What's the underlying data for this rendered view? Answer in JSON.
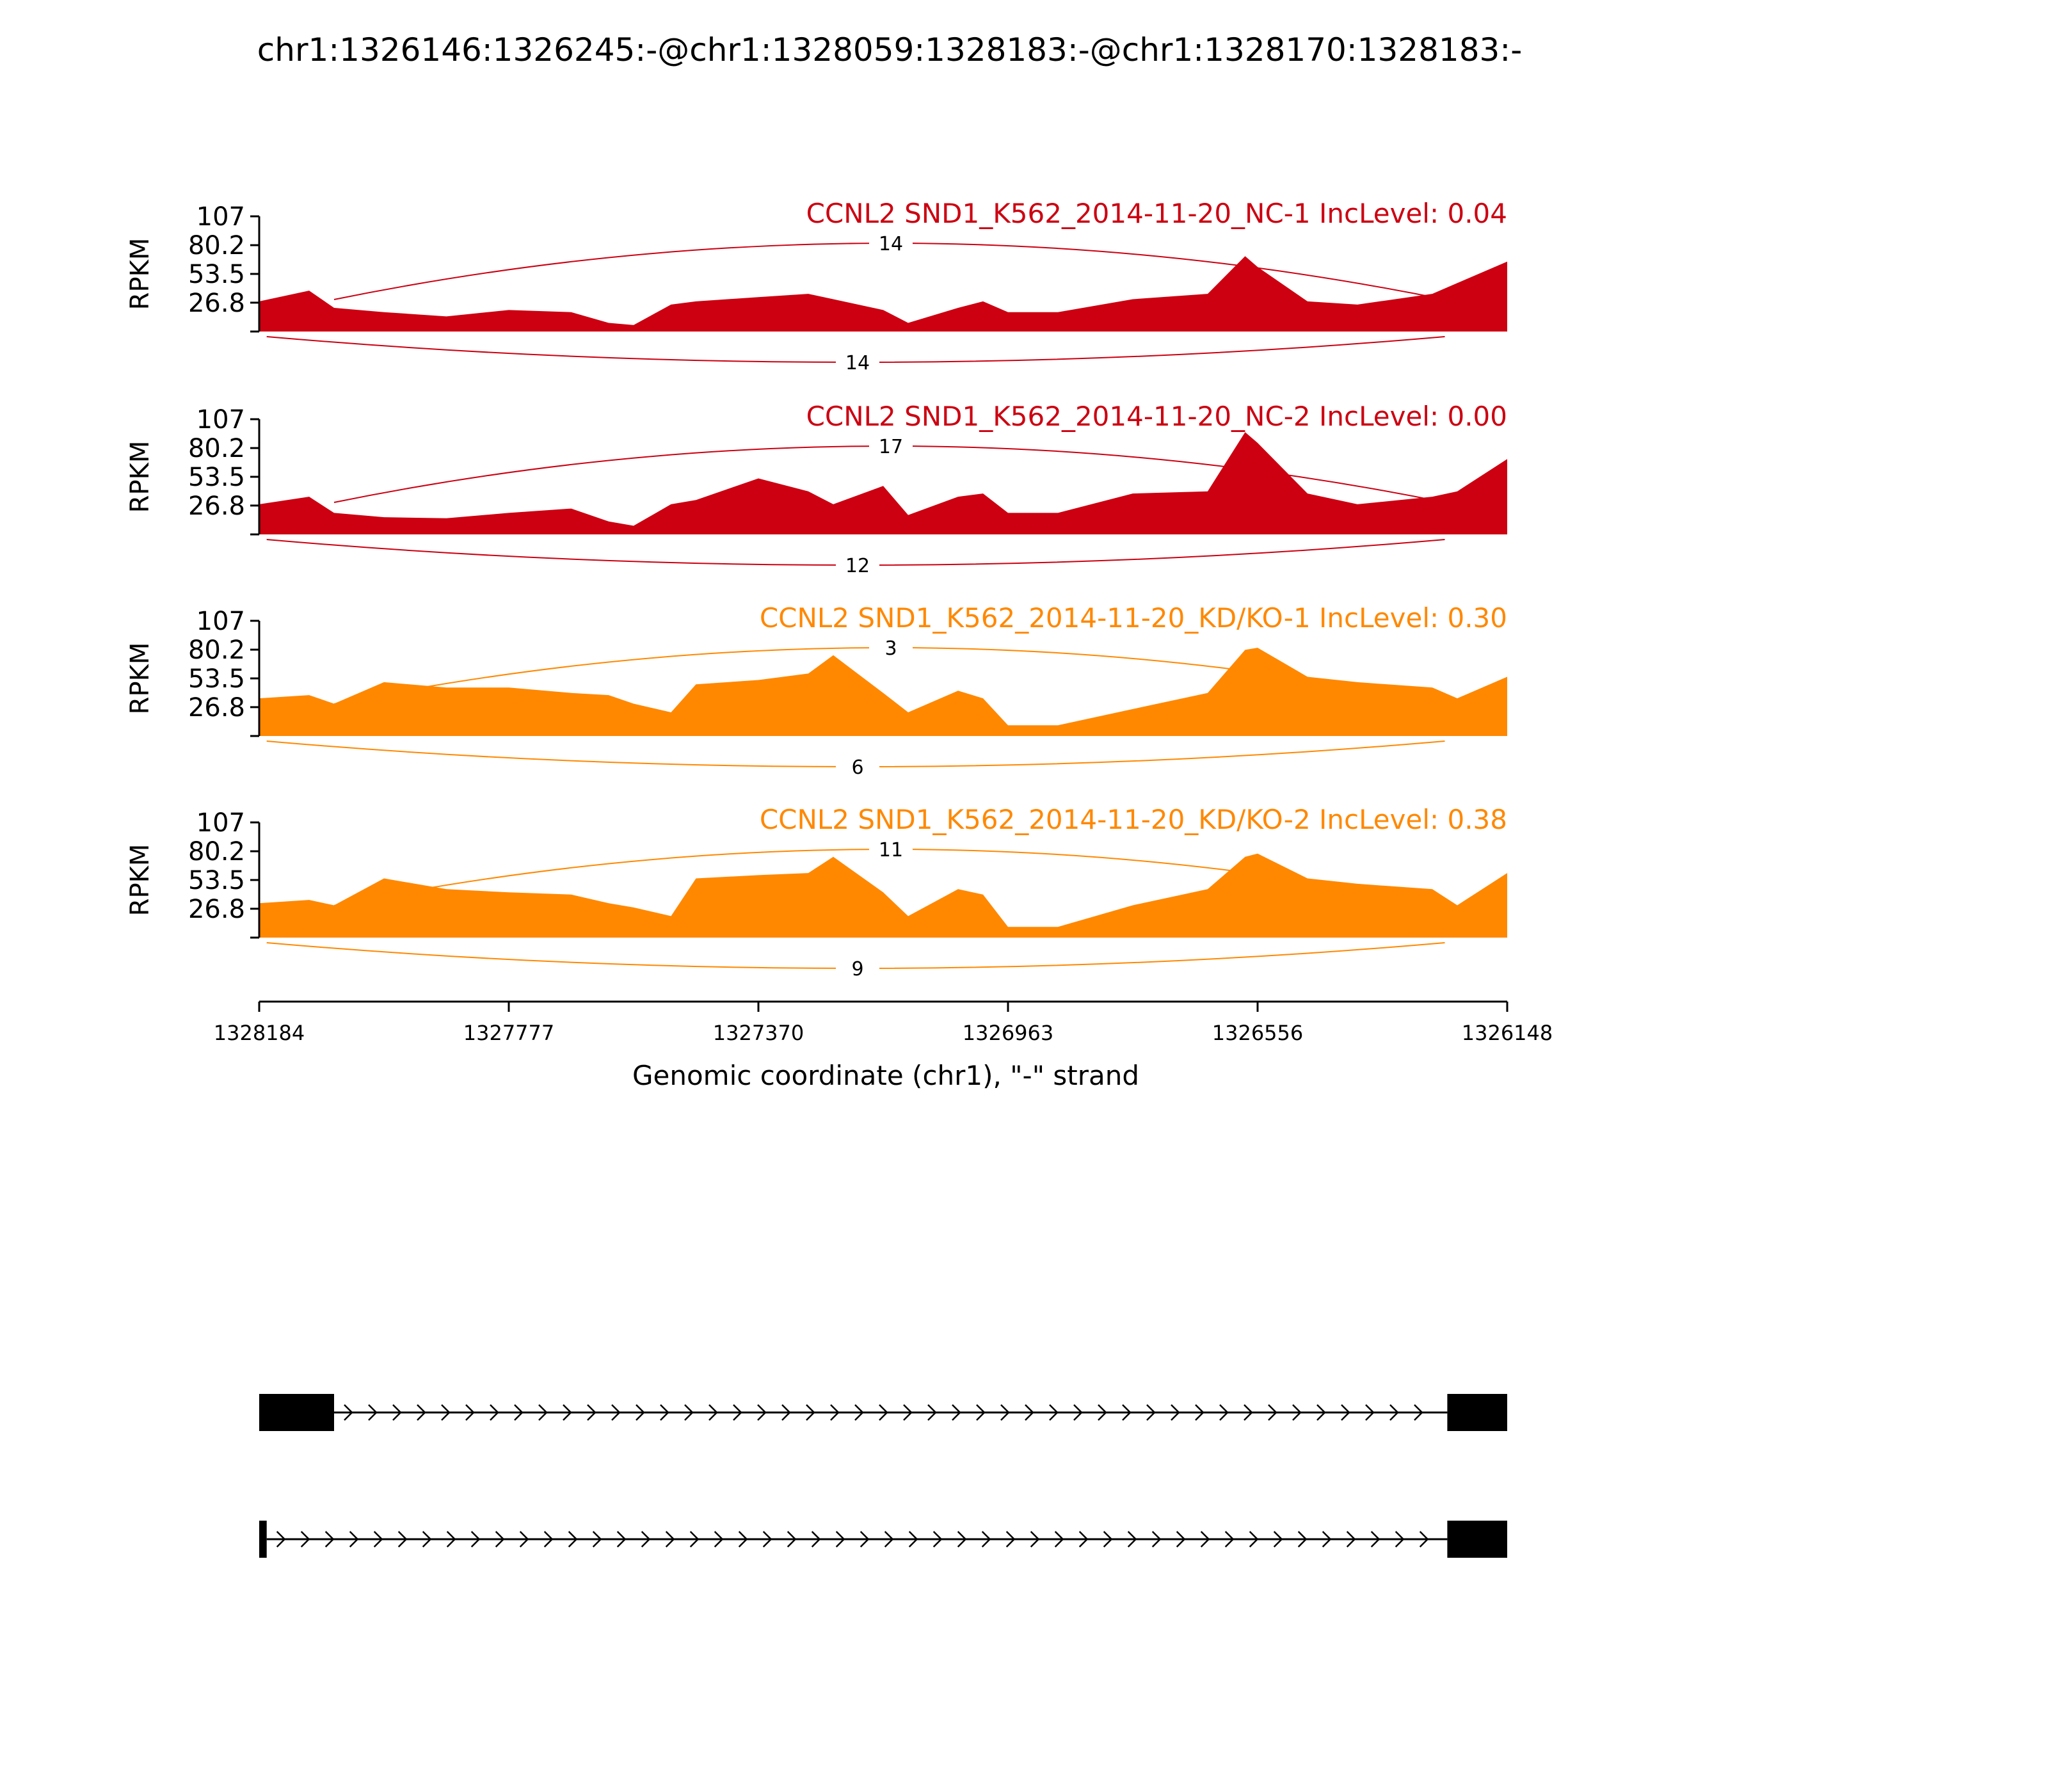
{
  "chart_data": {
    "type": "area",
    "title": "chr1:1326146:1326245:-@chr1:1328059:1328183:-@chr1:1328170:1328183:-",
    "xlabel": "Genomic coordinate (chr1), \"-\" strand",
    "ylabel": "RPKM",
    "x_ticks": [
      "1328184",
      "1327777",
      "1327370",
      "1326963",
      "1326556",
      "1326148"
    ],
    "y_ticks": [
      "26.8",
      "53.5",
      "80.2",
      "107"
    ],
    "ylim": [
      0,
      107
    ],
    "xlim": [
      1328184,
      1326148
    ],
    "colors": {
      "nc": "#cc0011",
      "kd": "#ff8800",
      "axis": "#000000",
      "exon": "#000000"
    },
    "x_positions": [
      0,
      0.04,
      0.06,
      0.1,
      0.15,
      0.2,
      0.25,
      0.28,
      0.3,
      0.33,
      0.35,
      0.4,
      0.44,
      0.46,
      0.5,
      0.52,
      0.56,
      0.58,
      0.6,
      0.64,
      0.7,
      0.76,
      0.79,
      0.8,
      0.84,
      0.88,
      0.94,
      0.96,
      1
    ],
    "tracks": [
      {
        "label": "CCNL2 SND1_K562_2014-11-20_NC-1 IncLevel: 0.04",
        "group": "nc",
        "values": [
          28,
          38,
          22,
          18,
          14,
          20,
          18,
          8,
          6,
          25,
          28,
          32,
          35,
          30,
          20,
          8,
          22,
          28,
          18,
          18,
          30,
          35,
          70,
          60,
          28,
          25,
          35,
          45,
          65
        ],
        "junctions": [
          {
            "from": 0.06,
            "to": 0.95,
            "count": "14",
            "side": "top"
          },
          {
            "from": 0.006,
            "to": 0.95,
            "count": "14",
            "side": "bottom"
          }
        ]
      },
      {
        "label": "CCNL2 SND1_K562_2014-11-20_NC-2 IncLevel: 0.00",
        "group": "nc",
        "values": [
          28,
          35,
          20,
          16,
          15,
          20,
          24,
          12,
          8,
          28,
          32,
          52,
          40,
          28,
          45,
          18,
          35,
          38,
          20,
          20,
          38,
          40,
          95,
          85,
          38,
          28,
          35,
          40,
          70
        ],
        "junctions": [
          {
            "from": 0.06,
            "to": 0.95,
            "count": "17",
            "side": "top"
          },
          {
            "from": 0.006,
            "to": 0.95,
            "count": "12",
            "side": "bottom"
          }
        ]
      },
      {
        "label": "CCNL2 SND1_K562_2014-11-20_KD/KO-1 IncLevel: 0.30",
        "group": "kd",
        "values": [
          35,
          38,
          30,
          50,
          45,
          45,
          40,
          38,
          30,
          22,
          48,
          52,
          58,
          75,
          40,
          22,
          42,
          35,
          10,
          10,
          25,
          40,
          80,
          82,
          55,
          50,
          45,
          35,
          55
        ],
        "junctions": [
          {
            "from": 0.06,
            "to": 0.95,
            "count": "3",
            "side": "top"
          },
          {
            "from": 0.006,
            "to": 0.95,
            "count": "6",
            "side": "bottom"
          }
        ]
      },
      {
        "label": "CCNL2 SND1_K562_2014-11-20_KD/KO-2 IncLevel: 0.38",
        "group": "kd",
        "values": [
          32,
          35,
          30,
          55,
          45,
          42,
          40,
          32,
          28,
          20,
          55,
          58,
          60,
          75,
          42,
          20,
          45,
          40,
          10,
          10,
          30,
          45,
          75,
          78,
          55,
          50,
          45,
          30,
          60
        ],
        "junctions": [
          {
            "from": 0.06,
            "to": 0.95,
            "count": "11",
            "side": "top"
          },
          {
            "from": 0.006,
            "to": 0.95,
            "count": "9",
            "side": "bottom"
          }
        ]
      }
    ],
    "isoforms": [
      {
        "exons": [
          [
            0,
            0.06
          ],
          [
            0.952,
            1
          ]
        ]
      },
      {
        "exons": [
          [
            0,
            0.006
          ],
          [
            0.952,
            1
          ]
        ]
      }
    ]
  }
}
